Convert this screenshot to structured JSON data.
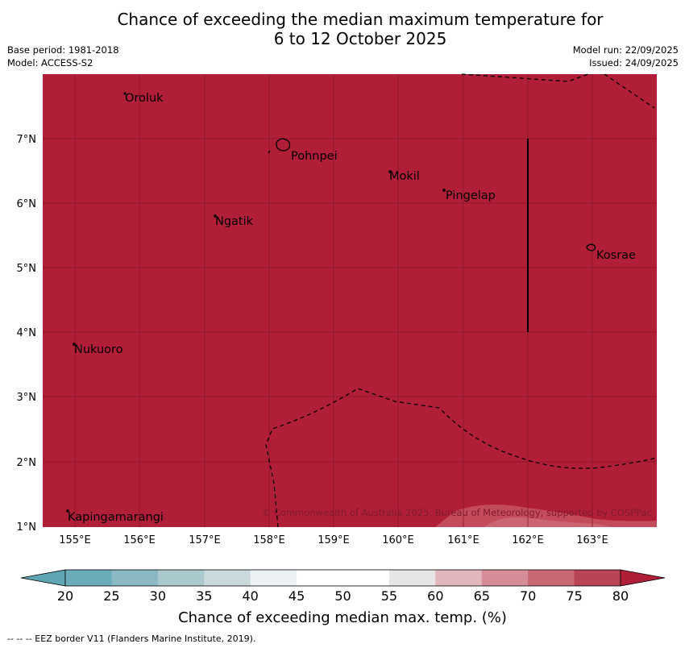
{
  "title_line1": "Chance of exceeding the median maximum temperature for",
  "title_line2": "6 to 12 October 2025",
  "base_period": "Base period: 1981-2018",
  "model": "Model: ACCESS-S2",
  "model_run": "Model run: 22/09/2025",
  "issued": "Issued: 24/09/2025",
  "map": {
    "fill_color": "#b11e38",
    "grid_color": "#8a1428",
    "lat_labels": [
      "7°N",
      "6°N",
      "5°N",
      "4°N",
      "3°N",
      "2°N",
      "1°N"
    ],
    "lon_labels": [
      "155°E",
      "156°E",
      "157°E",
      "158°E",
      "159°E",
      "160°E",
      "161°E",
      "162°E",
      "163°E"
    ],
    "places": [
      "Oroluk",
      "Pohnpei",
      "Mokil",
      "Pingelap",
      "Ngatik",
      "Kosrae",
      "Nukuoro",
      "Kapingamarangi"
    ],
    "copyright": "© Commonwealth of Australia 2025, Bureau of Meteorology, supported by COSPPac"
  },
  "colorbar": {
    "label": "Chance of exceeding median max. temp. (%)",
    "ticks": [
      "20",
      "25",
      "30",
      "35",
      "40",
      "45",
      "50",
      "55",
      "60",
      "65",
      "70",
      "75",
      "80"
    ],
    "under_color": "#5fa6b5",
    "over_color": "#b11e38",
    "colors": [
      "#6aacba",
      "#8ab9c4",
      "#a9c9cd",
      "#cad9dc",
      "#ecf1f3",
      "#ffffff",
      "#ffffff",
      "#e6e6e6",
      "#e1b6bc",
      "#d68d97",
      "#c76874",
      "#b94456"
    ]
  },
  "footnote": "--  --  -- EEZ border V11 (Flanders Marine Institute, 2019)."
}
